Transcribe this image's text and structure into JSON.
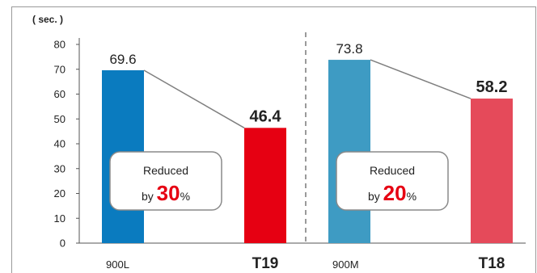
{
  "chart_data": {
    "type": "bar",
    "ylabel": "( sec. )",
    "ylim": [
      0,
      80
    ],
    "yticks": [
      0,
      10,
      20,
      30,
      40,
      50,
      60,
      70,
      80
    ],
    "groups": [
      {
        "bars": [
          {
            "label": "900L",
            "value": 69.6,
            "value_label": "69.6",
            "color": "#0a7bbf",
            "emphasis": false
          },
          {
            "label": "T19",
            "value": 46.4,
            "value_label": "46.4",
            "color": "#e60012",
            "emphasis": true
          }
        ],
        "callout": {
          "line1": "Reduced",
          "prefix": "by ",
          "percent": "30",
          "suffix": "%"
        }
      },
      {
        "bars": [
          {
            "label": "900M",
            "value": 73.8,
            "value_label": "73.8",
            "color": "#3e9bc3",
            "emphasis": false
          },
          {
            "label": "T18",
            "value": 58.2,
            "value_label": "58.2",
            "color": "#e54a5a",
            "emphasis": true
          }
        ],
        "callout": {
          "line1": "Reduced",
          "prefix": "by ",
          "percent": "20",
          "suffix": "%"
        }
      }
    ],
    "grid": false,
    "group_divider": "dashed"
  },
  "colors": {
    "frame": "#9a9a9a",
    "axis": "#555555",
    "connector": "#7f7f7f",
    "divider": "#9a9a9a",
    "callout_border": "#8a8a8a",
    "accent": "#e60012"
  }
}
